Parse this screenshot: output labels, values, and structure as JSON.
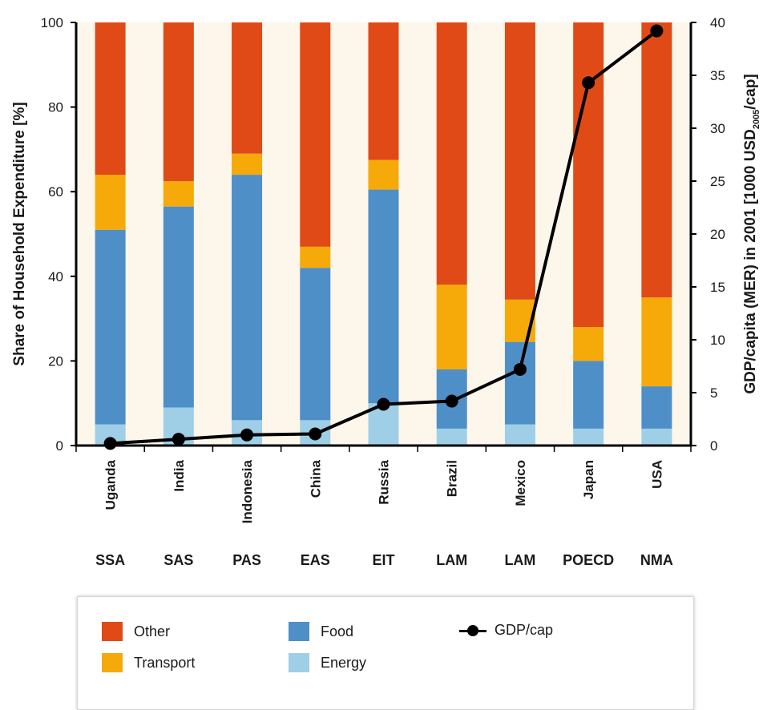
{
  "chart_data": {
    "type": "bar",
    "stacked": true,
    "categories": [
      "Uganda",
      "India",
      "Indonesia",
      "China",
      "Russia",
      "Brazil",
      "Mexico",
      "Japan",
      "USA"
    ],
    "regions": [
      "SSA",
      "SAS",
      "PAS",
      "EAS",
      "EIT",
      "LAM",
      "LAM",
      "POECD",
      "NMA"
    ],
    "series": [
      {
        "name": "Energy",
        "color": "#9ecfe6",
        "values": [
          5,
          9,
          6,
          6,
          10,
          4,
          5,
          4,
          4
        ]
      },
      {
        "name": "Food",
        "color": "#4f8fc8",
        "values": [
          46,
          47.5,
          58,
          36,
          50.5,
          14,
          19.5,
          16,
          10
        ]
      },
      {
        "name": "Transport",
        "color": "#f5aa0a",
        "values": [
          13,
          6,
          5,
          5,
          7,
          20,
          10,
          8,
          21
        ]
      },
      {
        "name": "Other",
        "color": "#e04a17",
        "values": [
          36,
          37.5,
          31,
          53,
          32.5,
          62,
          65.5,
          72,
          65
        ]
      }
    ],
    "line_series": {
      "name": "GDP/cap",
      "color": "#000000",
      "axis": "right",
      "values": [
        0.2,
        0.6,
        1.0,
        1.1,
        3.9,
        4.2,
        7.2,
        34.3,
        39.2
      ]
    },
    "ylabel": "Share of Household Expenditure [%]",
    "ylim": [
      0,
      100
    ],
    "yticks": [
      0,
      20,
      40,
      60,
      80,
      100
    ],
    "y2label_main": "GDP/capita (MER) in 2001 [1000 USD",
    "y2label_sub": "2005",
    "y2label_end": "/cap]",
    "y2lim": [
      0,
      40
    ],
    "y2ticks": [
      0,
      5,
      10,
      15,
      20,
      25,
      30,
      35,
      40
    ],
    "legend": {
      "col1": [
        "Other",
        "Transport"
      ],
      "col2": [
        "Food",
        "Energy"
      ],
      "col3": [
        "GDP/cap"
      ]
    },
    "background_color": "#fdf6ea"
  }
}
